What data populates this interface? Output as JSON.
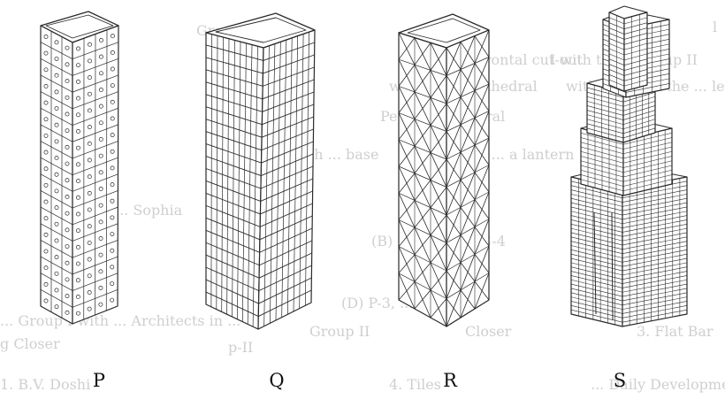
{
  "figure": {
    "labels": {
      "p": "P",
      "q": "Q",
      "r": "R",
      "s": "S"
    },
    "colors": {
      "ink": "#2a2a2a",
      "ghost": "#cfcfcf",
      "paper": "#ffffff"
    },
    "ghost_text": [
      "l",
      "Group II",
      "with the frontal cut-out",
      "I with the... Group II",
      "with the... Cathedral",
      "with the ... at the ... level",
      "Peter's Cathedral",
      "with ... base",
      "on a ... a lantern",
      "... Sophia",
      "(B) P-3, Q-1, ... S-4",
      "(D) P-3, ... S-2",
      "... Group I with ... Architects in ...",
      "p-II",
      "Group II",
      "g Closer",
      "Closer",
      "3. Flat Bar",
      "4. Tiles",
      "... Daily Development Board, New Delhi",
      "1. B.V. Doshi"
    ]
  }
}
